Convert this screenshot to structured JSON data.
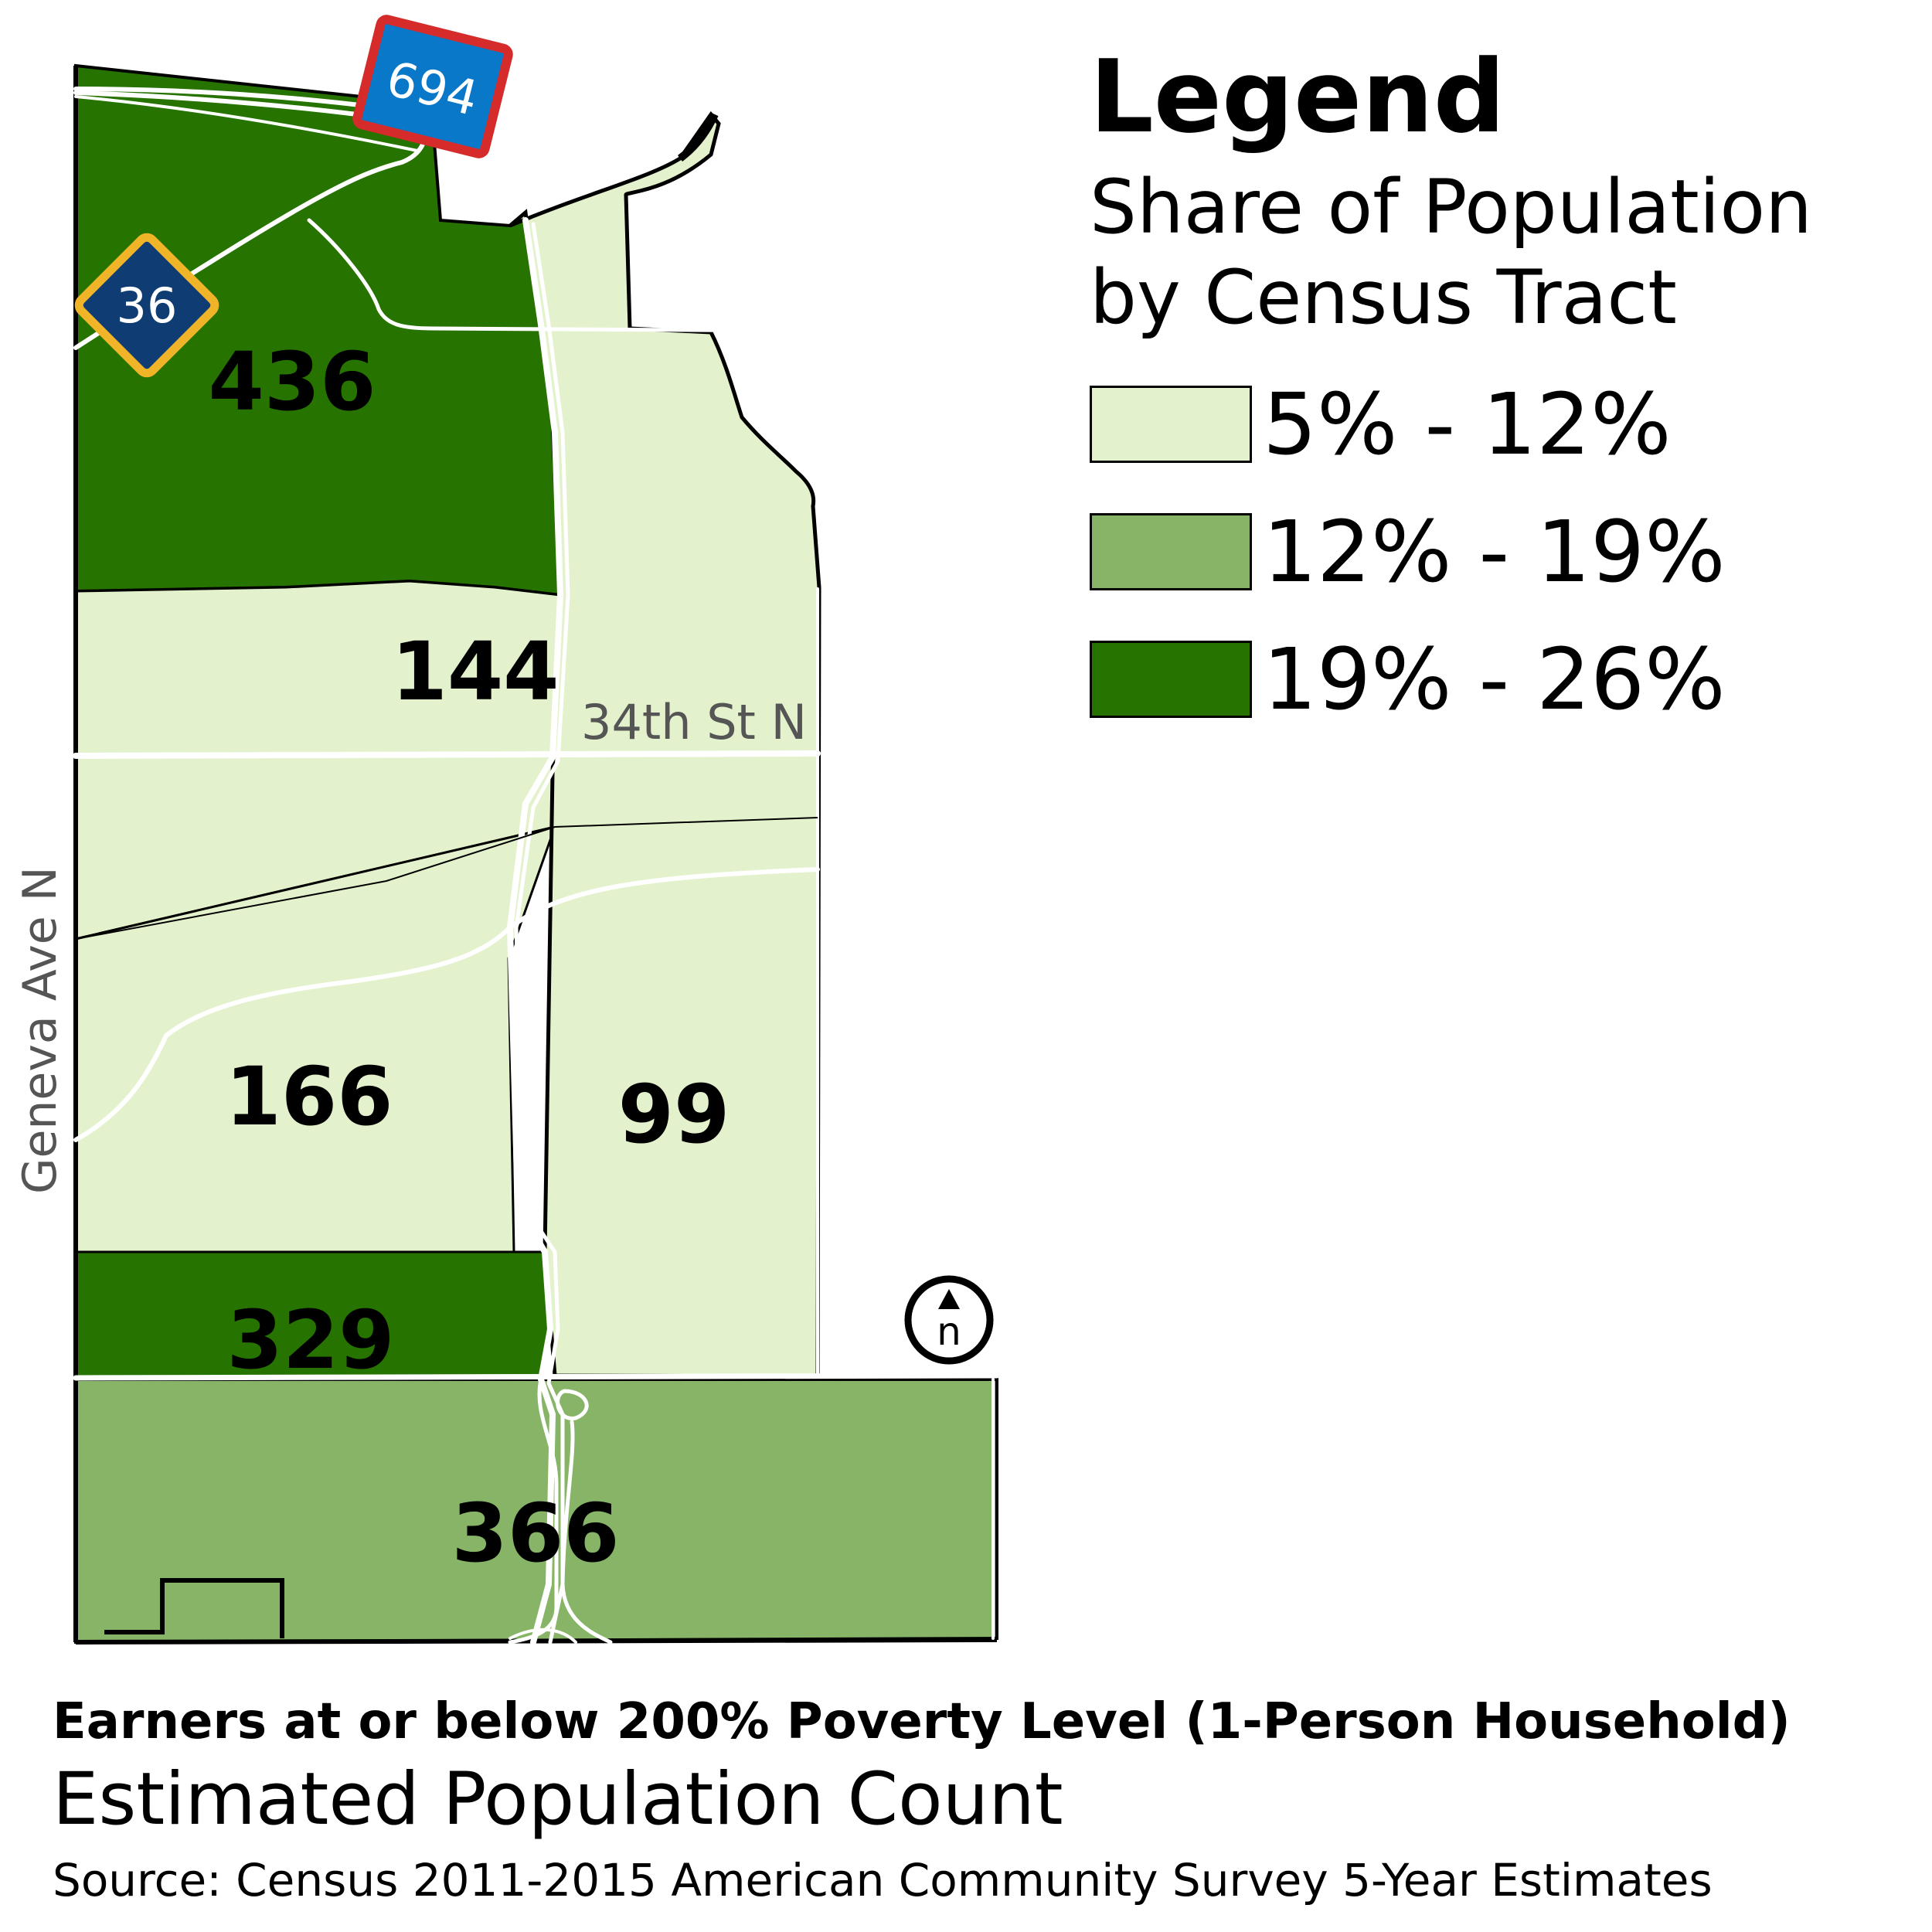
{
  "legend": {
    "title": "Legend",
    "subtitle_line1": "Share of Population",
    "subtitle_line2": "by Census Tract",
    "classes": [
      {
        "label": "5% - 12%",
        "color": "#e3f2cc"
      },
      {
        "label": "12% - 19%",
        "color": "#87b466"
      },
      {
        "label": "19% - 26%",
        "color": "#267300"
      }
    ]
  },
  "map": {
    "tracts": [
      {
        "count": "436",
        "class": "19% - 26%",
        "color": "#267300"
      },
      {
        "count": "144",
        "class": "5% - 12%",
        "color": "#e3f2cc"
      },
      {
        "count": "166",
        "class": "5% - 12%",
        "color": "#e3f2cc"
      },
      {
        "count": "99",
        "class": "5% - 12%",
        "color": "#e3f2cc"
      },
      {
        "count": "329",
        "class": "19% - 26%",
        "color": "#267300"
      },
      {
        "count": "366",
        "class": "12% - 19%",
        "color": "#87b466"
      }
    ],
    "street_labels": [
      "34th St N",
      "Geneva Ave N"
    ],
    "highway_shields": [
      "694",
      "36"
    ],
    "north_arrow_label": "n"
  },
  "footer": {
    "title": "Earners at or below 200% Poverty Level (1-Person Household)",
    "subtitle": "Estimated Population Count",
    "source": "Source: Census 2011-2015 American Community Survey 5-Year Estimates"
  }
}
